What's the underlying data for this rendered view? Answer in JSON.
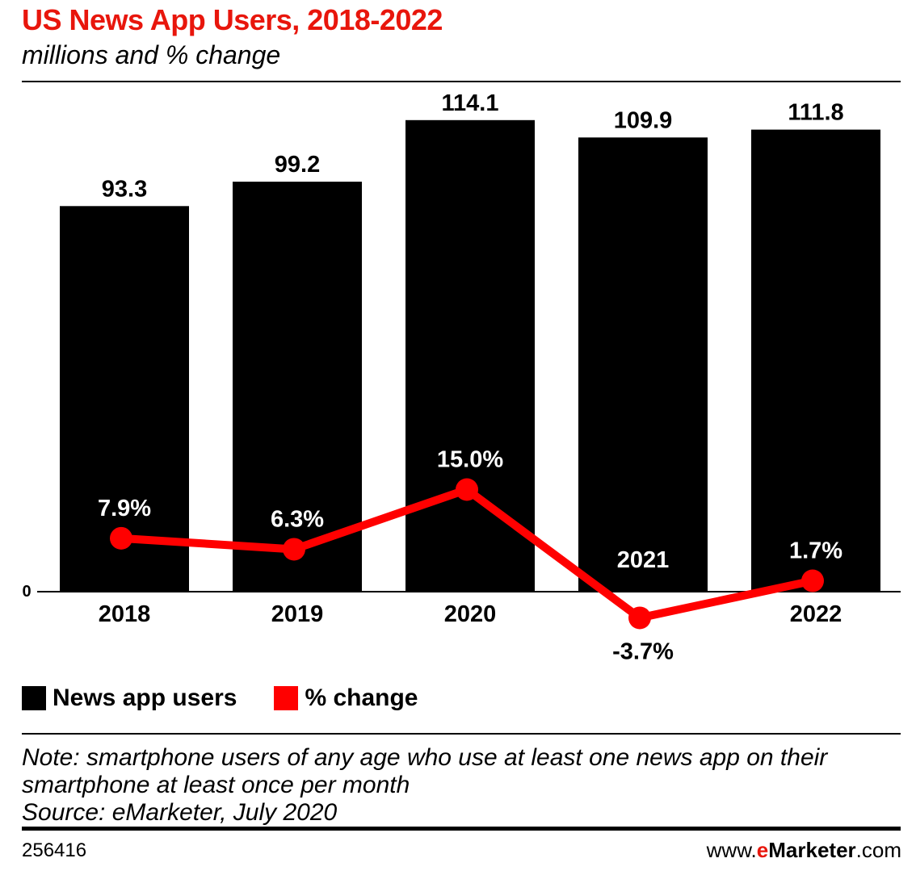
{
  "header": {
    "title": "US News App Users, 2018-2022",
    "subtitle": "millions and % change"
  },
  "chart_data": {
    "type": "bar",
    "categories": [
      "2018",
      "2019",
      "2020",
      "2021",
      "2022"
    ],
    "series": [
      {
        "name": "News app users",
        "type": "bar",
        "values": [
          93.3,
          99.2,
          114.1,
          109.9,
          111.8
        ],
        "labels": [
          "93.3",
          "99.2",
          "114.1",
          "109.9",
          "111.8"
        ],
        "color": "#000000"
      },
      {
        "name": "% change",
        "type": "line",
        "values": [
          7.9,
          6.3,
          15.0,
          -3.7,
          1.7
        ],
        "labels": [
          "7.9%",
          "6.3%",
          "15.0%",
          "-3.7%",
          "1.7%"
        ],
        "color": "#ff0000"
      }
    ],
    "ylim": [
      0,
      120
    ],
    "y_tick_label": "0",
    "legend_position": "bottom-left",
    "grid": false
  },
  "legend": {
    "items": [
      {
        "label": "News app users",
        "color": "#000000"
      },
      {
        "label": "% change",
        "color": "#ff0000"
      }
    ]
  },
  "footer": {
    "note": "Note: smartphone users of any age who use at least one news app on their smartphone at least once per month",
    "source": "Source: eMarketer, July 2020",
    "chart_id": "256416",
    "brand_prefix": "www.",
    "brand_e": "e",
    "brand_name": "Marketer",
    "brand_suffix": ".com"
  },
  "colors": {
    "title": "#e8160c",
    "bars": "#000000",
    "line": "#ff0000"
  }
}
